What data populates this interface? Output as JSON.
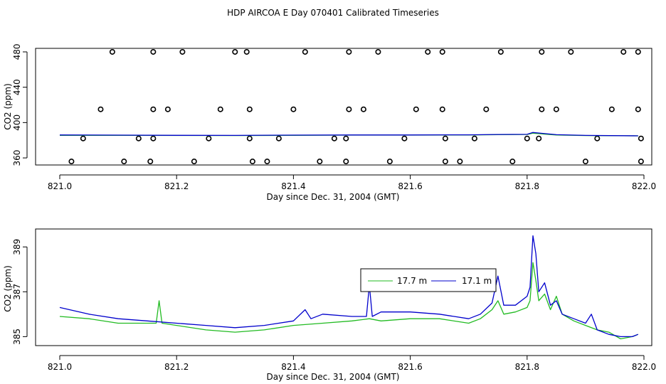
{
  "page_title": "HDP AIRCOA E  Day 070401  Calibrated Timeseries",
  "colors": {
    "green": "#22bb22",
    "blue": "#0000cc",
    "axis": "#000000"
  },
  "chart_data": [
    {
      "type": "line",
      "title": "",
      "xlabel": "Day since Dec. 31, 2004 (GMT)",
      "ylabel": "CO2 (ppm)",
      "xlim": [
        821.0,
        822.0
      ],
      "ylim": [
        352,
        484
      ],
      "x_ticks": [
        "821.0",
        "821.2",
        "821.4",
        "821.6",
        "821.8",
        "822.0"
      ],
      "y_ticks": [
        "360",
        "400",
        "440",
        "480"
      ],
      "grid": false,
      "series": [
        {
          "values": [
            [
              821.0,
              385.6
            ],
            [
              821.1,
              385.6
            ],
            [
              821.2,
              385.4
            ],
            [
              821.3,
              385.3
            ],
            [
              821.4,
              385.5
            ],
            [
              821.5,
              385.8
            ],
            [
              821.6,
              385.8
            ],
            [
              821.7,
              386.0
            ],
            [
              821.75,
              386.3
            ],
            [
              821.8,
              386.5
            ],
            [
              821.81,
              388.0
            ],
            [
              821.85,
              386.0
            ],
            [
              821.9,
              385.3
            ],
            [
              821.99,
              385.0
            ]
          ]
        },
        {
          "values": [
            [
              821.0,
              386.0
            ],
            [
              821.1,
              385.8
            ],
            [
              821.2,
              385.6
            ],
            [
              821.3,
              385.5
            ],
            [
              821.4,
              385.8
            ],
            [
              821.5,
              386.0
            ],
            [
              821.6,
              386.0
            ],
            [
              821.7,
              386.1
            ],
            [
              821.75,
              386.5
            ],
            [
              821.8,
              386.7
            ],
            [
              821.81,
              388.8
            ],
            [
              821.85,
              386.3
            ],
            [
              821.9,
              385.5
            ],
            [
              821.99,
              385.0
            ]
          ]
        }
      ],
      "markers": [
        [
          821.02,
          356
        ],
        [
          821.04,
          382
        ],
        [
          821.07,
          415
        ],
        [
          821.09,
          480
        ],
        [
          821.11,
          356
        ],
        [
          821.135,
          382
        ],
        [
          821.155,
          356
        ],
        [
          821.16,
          382
        ],
        [
          821.16,
          415
        ],
        [
          821.16,
          480
        ],
        [
          821.185,
          415
        ],
        [
          821.21,
          480
        ],
        [
          821.23,
          356
        ],
        [
          821.255,
          382
        ],
        [
          821.275,
          415
        ],
        [
          821.3,
          480
        ],
        [
          821.32,
          480
        ],
        [
          821.325,
          415
        ],
        [
          821.325,
          382
        ],
        [
          821.33,
          356
        ],
        [
          821.355,
          356
        ],
        [
          821.375,
          382
        ],
        [
          821.4,
          415
        ],
        [
          821.42,
          480
        ],
        [
          821.445,
          356
        ],
        [
          821.47,
          382
        ],
        [
          821.49,
          356
        ],
        [
          821.49,
          382
        ],
        [
          821.495,
          415
        ],
        [
          821.495,
          480
        ],
        [
          821.52,
          415
        ],
        [
          821.545,
          480
        ],
        [
          821.565,
          356
        ],
        [
          821.59,
          382
        ],
        [
          821.61,
          415
        ],
        [
          821.63,
          480
        ],
        [
          821.655,
          480
        ],
        [
          821.655,
          415
        ],
        [
          821.66,
          382
        ],
        [
          821.66,
          356
        ],
        [
          821.685,
          356
        ],
        [
          821.71,
          382
        ],
        [
          821.73,
          415
        ],
        [
          821.755,
          480
        ],
        [
          821.775,
          356
        ],
        [
          821.8,
          382
        ],
        [
          821.82,
          382
        ],
        [
          821.825,
          415
        ],
        [
          821.825,
          480
        ],
        [
          821.85,
          415
        ],
        [
          821.875,
          480
        ],
        [
          821.9,
          356
        ],
        [
          821.92,
          382
        ],
        [
          821.945,
          415
        ],
        [
          821.965,
          480
        ],
        [
          821.99,
          480
        ],
        [
          821.99,
          415
        ],
        [
          821.995,
          382
        ],
        [
          821.995,
          356
        ]
      ]
    },
    {
      "type": "line",
      "title": "",
      "xlabel": "Day since Dec. 31, 2004 (GMT)",
      "ylabel": "CO2 (ppm)",
      "xlim": [
        821.0,
        822.0
      ],
      "ylim": [
        384.6,
        389.8
      ],
      "x_ticks": [
        "821.0",
        "821.2",
        "821.4",
        "821.6",
        "821.8",
        "822.0"
      ],
      "y_ticks": [
        "385",
        "387",
        "389"
      ],
      "grid": false,
      "legend": "top-center",
      "series": [
        {
          "name": "17.7 m",
          "values": [
            [
              821.0,
              385.9
            ],
            [
              821.05,
              385.8
            ],
            [
              821.1,
              385.6
            ],
            [
              821.15,
              385.6
            ],
            [
              821.165,
              385.6
            ],
            [
              821.17,
              386.6
            ],
            [
              821.175,
              385.6
            ],
            [
              821.2,
              385.5
            ],
            [
              821.25,
              385.3
            ],
            [
              821.3,
              385.2
            ],
            [
              821.35,
              385.3
            ],
            [
              821.4,
              385.5
            ],
            [
              821.45,
              385.6
            ],
            [
              821.5,
              385.7
            ],
            [
              821.53,
              385.8
            ],
            [
              821.55,
              385.7
            ],
            [
              821.6,
              385.8
            ],
            [
              821.65,
              385.8
            ],
            [
              821.7,
              385.6
            ],
            [
              821.72,
              385.8
            ],
            [
              821.74,
              386.2
            ],
            [
              821.75,
              386.6
            ],
            [
              821.76,
              386.0
            ],
            [
              821.78,
              386.1
            ],
            [
              821.8,
              386.3
            ],
            [
              821.805,
              386.6
            ],
            [
              821.81,
              388.3
            ],
            [
              821.815,
              387.5
            ],
            [
              821.82,
              386.6
            ],
            [
              821.83,
              386.9
            ],
            [
              821.84,
              386.2
            ],
            [
              821.85,
              386.8
            ],
            [
              821.86,
              386.0
            ],
            [
              821.88,
              385.7
            ],
            [
              821.9,
              385.5
            ],
            [
              821.92,
              385.3
            ],
            [
              821.94,
              385.2
            ],
            [
              821.96,
              384.9
            ],
            [
              821.98,
              385.0
            ],
            [
              821.99,
              385.1
            ]
          ]
        },
        {
          "name": "17.1 m",
          "values": [
            [
              821.0,
              386.3
            ],
            [
              821.05,
              386.0
            ],
            [
              821.1,
              385.8
            ],
            [
              821.15,
              385.7
            ],
            [
              821.2,
              385.6
            ],
            [
              821.25,
              385.5
            ],
            [
              821.3,
              385.4
            ],
            [
              821.35,
              385.5
            ],
            [
              821.4,
              385.7
            ],
            [
              821.42,
              386.2
            ],
            [
              821.43,
              385.8
            ],
            [
              821.45,
              386.0
            ],
            [
              821.5,
              385.9
            ],
            [
              821.525,
              385.9
            ],
            [
              821.53,
              387.3
            ],
            [
              821.535,
              385.9
            ],
            [
              821.55,
              386.1
            ],
            [
              821.6,
              386.1
            ],
            [
              821.65,
              386.0
            ],
            [
              821.7,
              385.8
            ],
            [
              821.72,
              386.0
            ],
            [
              821.74,
              386.5
            ],
            [
              821.75,
              387.7
            ],
            [
              821.76,
              386.4
            ],
            [
              821.78,
              386.4
            ],
            [
              821.8,
              386.8
            ],
            [
              821.805,
              387.2
            ],
            [
              821.81,
              389.5
            ],
            [
              821.815,
              388.7
            ],
            [
              821.82,
              387.0
            ],
            [
              821.83,
              387.4
            ],
            [
              821.84,
              386.4
            ],
            [
              821.85,
              386.6
            ],
            [
              821.86,
              386.0
            ],
            [
              821.88,
              385.8
            ],
            [
              821.9,
              385.6
            ],
            [
              821.91,
              386.0
            ],
            [
              821.92,
              385.3
            ],
            [
              821.94,
              385.1
            ],
            [
              821.96,
              385.0
            ],
            [
              821.98,
              385.0
            ],
            [
              821.99,
              385.1
            ]
          ]
        }
      ]
    }
  ]
}
